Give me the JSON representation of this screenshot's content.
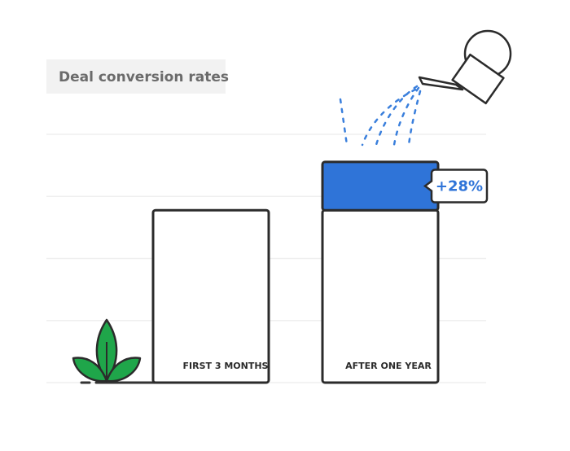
{
  "chart_data": {
    "type": "bar",
    "title": "Deal conversion rates",
    "categories": [
      "FIRST 3 MONTHS",
      "AFTER ONE YEAR"
    ],
    "series": [
      {
        "values": [
          100,
          100
        ],
        "color": "#ffffff"
      },
      {
        "values": [
          null,
          28
        ],
        "value_labels": [
          null,
          "+28%"
        ],
        "color": "#2f74d8"
      }
    ],
    "ylim": [
      0,
      144
    ],
    "yticks": [
      0,
      36,
      72,
      108,
      144
    ],
    "grid": true
  }
}
